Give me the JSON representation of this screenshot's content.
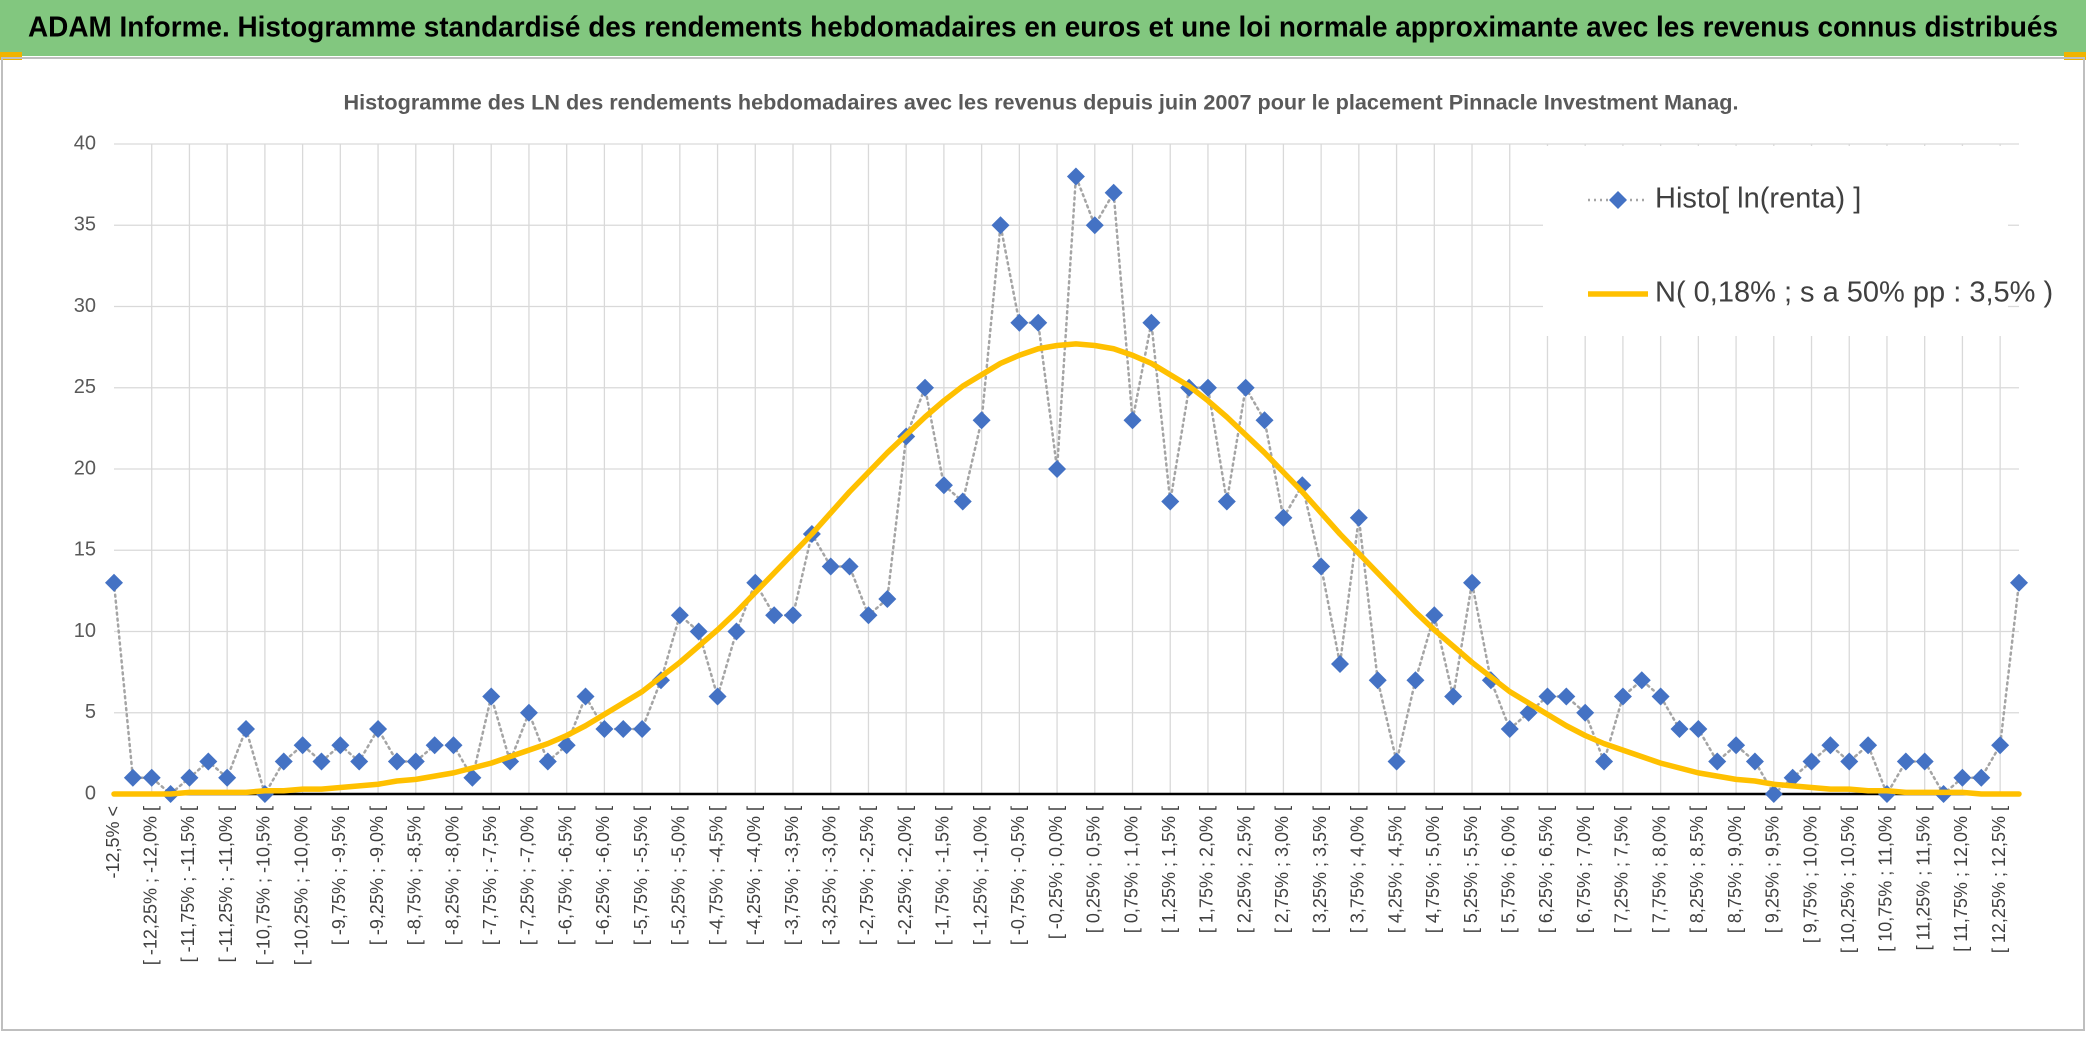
{
  "header": {
    "title": "ADAM Informe. Histogramme standardisé des rendements hebdomadaires en euros et une loi normale approximante avec les revenus connus distribués"
  },
  "chart_data": {
    "type": "line",
    "title": "Histogramme des LN des rendements hebdomadaires avec les revenus depuis juin 2007 pour le placement Pinnacle Investment Manag.",
    "categories": [
      "-12,5% <",
      null,
      "[ -12,25% ; -12,0% [",
      null,
      "[ -11,75% ; -11,5% [",
      null,
      "[ -11,25% ; -11,0% [",
      null,
      "[ -10,75% ; -10,5% [",
      null,
      "[ -10,25% ; -10,0% [",
      null,
      "[ -9,75% ; -9,5% [",
      null,
      "[ -9,25% ; -9,0% [",
      null,
      "[ -8,75% ; -8,5% [",
      null,
      "[ -8,25% ; -8,0% [",
      null,
      "[ -7,75% ; -7,5% [",
      null,
      "[ -7,25% ; -7,0% [",
      null,
      "[ -6,75% ; -6,5% [",
      null,
      "[ -6,25% ; -6,0% [",
      null,
      "[ -5,75% ; -5,5% [",
      null,
      "[ -5,25% ; -5,0% [",
      null,
      "[ -4,75% ; -4,5% [",
      null,
      "[ -4,25% ; -4,0% [",
      null,
      "[ -3,75% ; -3,5% [",
      null,
      "[ -3,25% ; -3,0% [",
      null,
      "[ -2,75% ; -2,5% [",
      null,
      "[ -2,25% ; -2,0% [",
      null,
      "[ -1,75% ; -1,5% [",
      null,
      "[ -1,25% ; -1,0% [",
      null,
      "[ -0,75% ; -0,5% [",
      null,
      "[ -0,25% ; 0,0% [",
      null,
      "[ 0,25% ; 0,5% [",
      null,
      "[ 0,75% ; 1,0% [",
      null,
      "[ 1,25% ; 1,5% [",
      null,
      "[ 1,75% ; 2,0% [",
      null,
      "[ 2,25% ; 2,5% [",
      null,
      "[ 2,75% ; 3,0% [",
      null,
      "[ 3,25% ; 3,5% [",
      null,
      "[ 3,75% ; 4,0% [",
      null,
      "[ 4,25% ; 4,5% [",
      null,
      "[ 4,75% ; 5,0% [",
      null,
      "[ 5,25% ; 5,5% [",
      null,
      "[ 5,75% ; 6,0% [",
      null,
      "[ 6,25% ; 6,5% [",
      null,
      "[ 6,75% ; 7,0% [",
      null,
      "[ 7,25% ; 7,5% [",
      null,
      "[ 7,75% ; 8,0% [",
      null,
      "[ 8,25% ; 8,5% [",
      null,
      "[ 8,75% ; 9,0% [",
      null,
      "[ 9,25% ; 9,5% [",
      null,
      "[ 9,75% ; 10,0% [",
      null,
      "[ 10,25% ; 10,5% [",
      null,
      "[ 10,75% ; 11,0% [",
      null,
      "[ 11,25% ; 11,5% [",
      null,
      "[ 11,75% ; 12,0% [",
      null,
      "[ 12,25% ; 12,5% [",
      null
    ],
    "series": [
      {
        "name": "Histo[ ln(renta) ]",
        "color": "#4472c4",
        "line_color": "#a5a5a5",
        "marker": "diamond",
        "values": [
          13,
          1,
          1,
          0,
          1,
          2,
          1,
          4,
          0,
          2,
          3,
          2,
          3,
          2,
          4,
          2,
          2,
          3,
          3,
          1,
          6,
          2,
          5,
          2,
          3,
          6,
          4,
          4,
          4,
          7,
          11,
          10,
          6,
          10,
          13,
          11,
          11,
          16,
          14,
          14,
          11,
          12,
          22,
          25,
          19,
          18,
          23,
          35,
          29,
          29,
          20,
          38,
          35,
          37,
          23,
          29,
          18,
          25,
          25,
          18,
          25,
          23,
          17,
          19,
          14,
          8,
          17,
          7,
          2,
          7,
          11,
          6,
          13,
          7,
          4,
          5,
          6,
          6,
          5,
          2,
          6,
          7,
          6,
          4,
          4,
          2,
          3,
          2,
          0,
          1,
          2,
          3,
          2,
          3,
          0,
          2,
          2,
          0,
          1,
          1,
          3,
          13
        ]
      },
      {
        "name": "N( 0,18% ; s a 50% pp : 3,5% )",
        "color": "#ffc000",
        "marker": "none",
        "values": [
          0,
          0,
          0,
          0,
          0.1,
          0.1,
          0.1,
          0.1,
          0.2,
          0.2,
          0.3,
          0.3,
          0.4,
          0.5,
          0.6,
          0.8,
          0.9,
          1.1,
          1.3,
          1.6,
          1.9,
          2.3,
          2.7,
          3.1,
          3.6,
          4.2,
          4.9,
          5.6,
          6.3,
          7.2,
          8.1,
          9.1,
          10.1,
          11.2,
          12.4,
          13.6,
          14.8,
          16.0,
          17.3,
          18.6,
          19.8,
          21.0,
          22.1,
          23.2,
          24.2,
          25.1,
          25.8,
          26.5,
          27.0,
          27.4,
          27.6,
          27.7,
          27.6,
          27.4,
          27.0,
          26.5,
          25.8,
          25.1,
          24.2,
          23.2,
          22.1,
          21.0,
          19.8,
          18.6,
          17.3,
          16.0,
          14.8,
          13.6,
          12.4,
          11.2,
          10.1,
          9.1,
          8.1,
          7.2,
          6.3,
          5.6,
          4.9,
          4.2,
          3.6,
          3.1,
          2.7,
          2.3,
          1.9,
          1.6,
          1.3,
          1.1,
          0.9,
          0.8,
          0.6,
          0.5,
          0.4,
          0.3,
          0.3,
          0.2,
          0.2,
          0.1,
          0.1,
          0.1,
          0.1,
          0,
          0,
          0
        ]
      }
    ],
    "ylim": [
      0,
      40
    ],
    "yticks": [
      0,
      5,
      10,
      15,
      20,
      25,
      30,
      35,
      40
    ],
    "grid": true,
    "legend": "top-right"
  }
}
